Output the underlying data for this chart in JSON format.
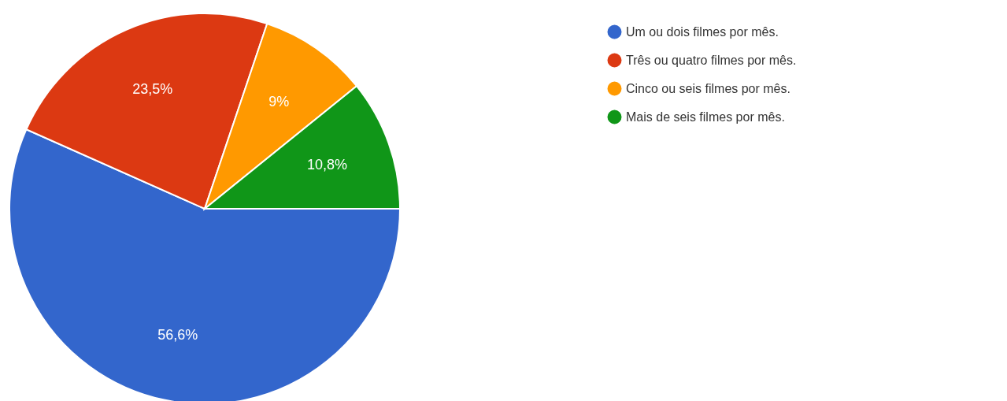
{
  "chart_data": {
    "type": "pie",
    "categories": [
      "Um ou dois filmes por mês.",
      "Três ou quatro filmes por mês.",
      "Cinco ou seis filmes por mês.",
      "Mais de seis filmes por mês."
    ],
    "values": [
      56.6,
      23.5,
      9,
      10.8
    ],
    "colors": [
      "#3366cc",
      "#dc3912",
      "#ff9900",
      "#109618"
    ],
    "value_labels": [
      "56,6%",
      "23,5%",
      "9%",
      "10,8%"
    ],
    "legend": "top right"
  }
}
